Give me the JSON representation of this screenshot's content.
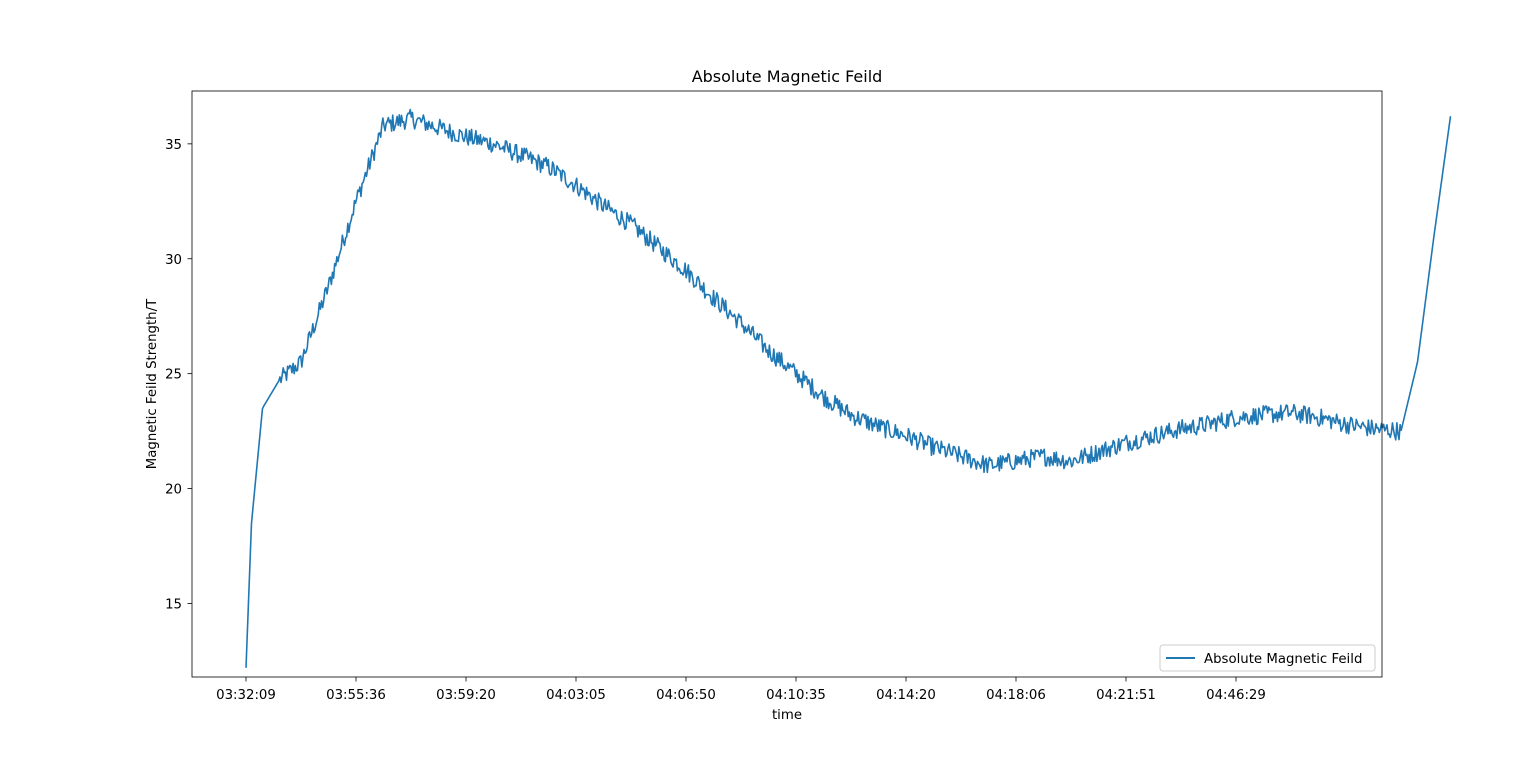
{
  "chart_data": {
    "type": "line",
    "title": "Absolute Magnetic Feild",
    "xlabel": "time",
    "ylabel": "Magnetic Feild Strength/T",
    "x_tick_labels": [
      "03:32:09",
      "03:55:36",
      "03:59:20",
      "04:03:05",
      "04:06:50",
      "04:10:35",
      "04:14:20",
      "04:18:06",
      "04:21:51",
      "04:46:29"
    ],
    "y_ticks": [
      15,
      20,
      25,
      30,
      35
    ],
    "ylim": [
      11.8,
      37.3
    ],
    "grid": false,
    "legend_position": "lower-right",
    "series": [
      {
        "name": "Absolute Magnetic Feild",
        "color": "#1f77b4",
        "x_index": [
          0,
          0.05,
          0.15,
          0.3,
          0.5,
          0.75,
          1.0,
          1.25,
          1.5,
          1.75,
          2.0,
          2.25,
          2.5,
          2.75,
          3.0,
          3.25,
          3.5,
          3.75,
          4.0,
          4.25,
          4.5,
          4.75,
          5.0,
          5.25,
          5.5,
          5.75,
          6.0,
          6.25,
          6.5,
          6.75,
          7.0,
          7.25,
          7.5,
          7.75,
          8.0,
          8.25,
          8.5,
          8.75,
          9.0,
          9.25,
          9.5,
          9.75,
          10.0,
          10.25,
          10.5,
          10.65,
          10.8,
          10.95
        ],
        "values": [
          12.2,
          18.5,
          23.5,
          24.7,
          25.5,
          28.8,
          32.5,
          35.8,
          36.1,
          35.7,
          35.3,
          35.0,
          34.5,
          34.0,
          33.2,
          32.3,
          31.5,
          30.5,
          29.5,
          28.3,
          27.2,
          26.0,
          25.0,
          24.0,
          23.2,
          22.7,
          22.3,
          21.8,
          21.4,
          21.0,
          21.2,
          21.4,
          21.2,
          21.6,
          22.0,
          22.3,
          22.6,
          22.8,
          23.1,
          23.2,
          23.3,
          23.1,
          22.8,
          22.6,
          22.5,
          25.5,
          31.0,
          36.2
        ],
        "noise_amplitude": 0.4
      }
    ]
  }
}
